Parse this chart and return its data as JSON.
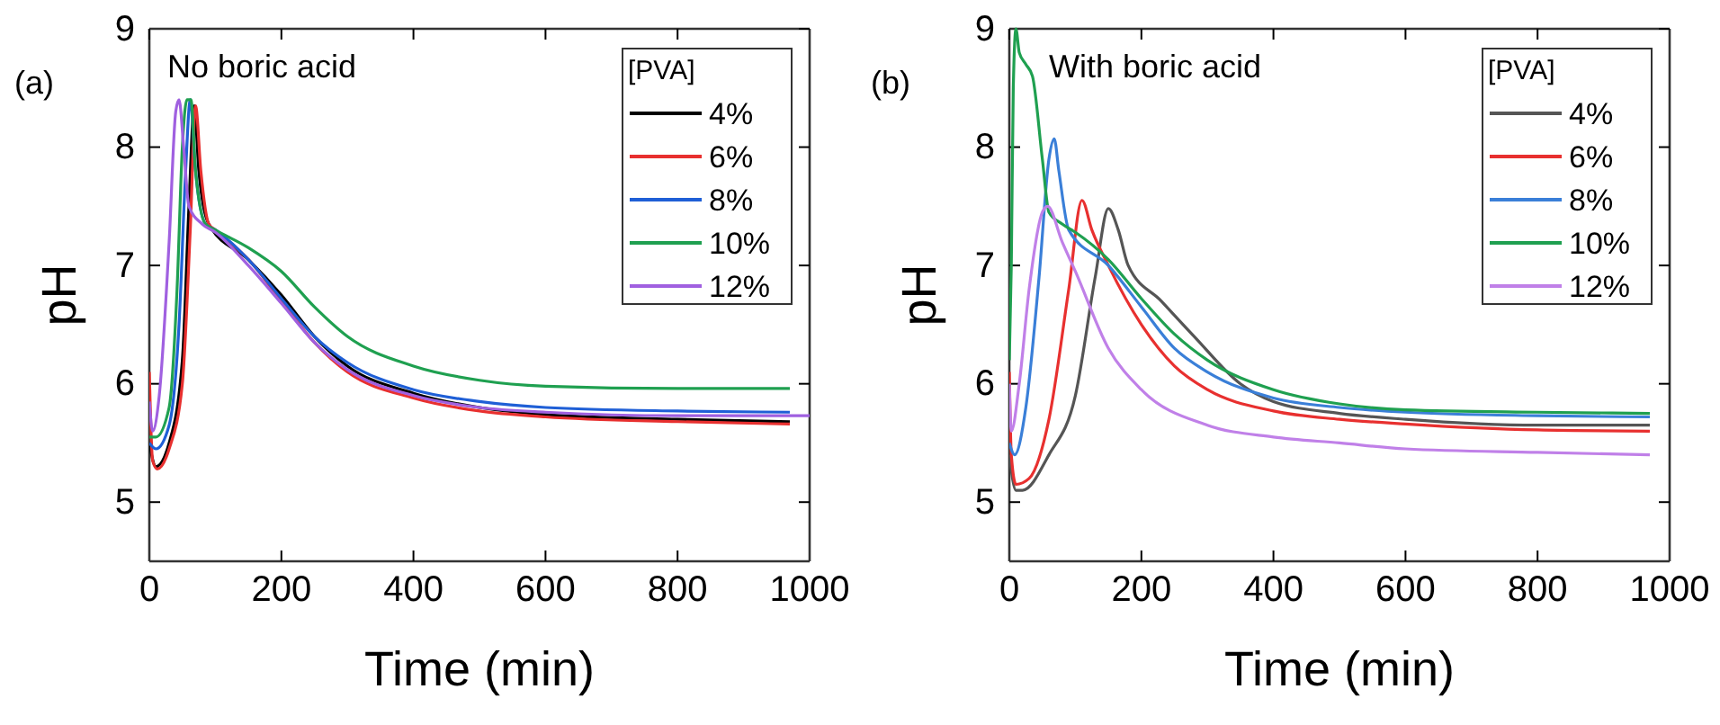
{
  "chart_data": [
    {
      "type": "line",
      "ylabel": "pH",
      "xlabel": "Time (min)",
      "legend_title": "[PVA]",
      "legend": "top right",
      "annotations": [
        "(a)",
        "No boric acid"
      ],
      "xlim": [
        0,
        1000
      ],
      "ylim": [
        4.5,
        9
      ],
      "xticks": [
        0,
        200,
        400,
        600,
        800,
        1000
      ],
      "yticks": [
        5,
        6,
        7,
        8,
        9
      ],
      "series": [
        {
          "name": "4%",
          "color": "#000000",
          "x": [
            0,
            10,
            30,
            50,
            60,
            68,
            75,
            90,
            150,
            200,
            250,
            300,
            400,
            500,
            600,
            800,
            970
          ],
          "values": [
            5.5,
            5.3,
            5.5,
            6.2,
            7.5,
            8.35,
            7.8,
            7.35,
            7.05,
            6.75,
            6.4,
            6.15,
            5.92,
            5.8,
            5.74,
            5.7,
            5.68
          ]
        },
        {
          "name": "6%",
          "color": "#e8302f",
          "x": [
            0,
            5,
            12,
            30,
            50,
            62,
            70,
            78,
            90,
            100,
            150,
            200,
            250,
            300,
            400,
            500,
            600,
            800,
            970
          ],
          "values": [
            6.1,
            5.35,
            5.28,
            5.45,
            6.0,
            7.3,
            8.35,
            7.8,
            7.35,
            7.3,
            7.05,
            6.7,
            6.35,
            6.1,
            5.88,
            5.77,
            5.72,
            5.68,
            5.66
          ]
        },
        {
          "name": "8%",
          "color": "#1f5fd6",
          "x": [
            0,
            10,
            30,
            45,
            55,
            62,
            70,
            85,
            100,
            150,
            200,
            250,
            300,
            400,
            500,
            600,
            800,
            970
          ],
          "values": [
            5.5,
            5.45,
            5.65,
            6.5,
            7.8,
            8.4,
            7.8,
            7.35,
            7.3,
            7.05,
            6.72,
            6.4,
            6.18,
            5.95,
            5.85,
            5.8,
            5.77,
            5.76
          ]
        },
        {
          "name": "10%",
          "color": "#1fa050",
          "x": [
            0,
            10,
            30,
            42,
            50,
            57,
            63,
            70,
            85,
            100,
            150,
            200,
            250,
            300,
            400,
            500,
            600,
            800,
            970
          ],
          "values": [
            5.55,
            5.55,
            5.8,
            6.8,
            8.0,
            8.4,
            8.4,
            7.8,
            7.35,
            7.3,
            7.15,
            6.95,
            6.65,
            6.4,
            6.15,
            6.03,
            5.98,
            5.96,
            5.96
          ]
        },
        {
          "name": "12%",
          "color": "#a060e0",
          "x": [
            0,
            5,
            15,
            30,
            40,
            45,
            52,
            60,
            80,
            100,
            150,
            200,
            250,
            300,
            400,
            500,
            600,
            800,
            1000
          ],
          "values": [
            5.85,
            5.6,
            5.9,
            7.2,
            8.3,
            8.4,
            8.0,
            7.5,
            7.35,
            7.28,
            7.0,
            6.68,
            6.35,
            6.12,
            5.9,
            5.8,
            5.76,
            5.73,
            5.73
          ]
        }
      ]
    },
    {
      "type": "line",
      "ylabel": "pH",
      "xlabel": "Time (min)",
      "legend_title": "[PVA]",
      "legend": "top right",
      "annotations": [
        "(b)",
        "With boric acid"
      ],
      "xlim": [
        0,
        1000
      ],
      "ylim": [
        4.5,
        9
      ],
      "xticks": [
        0,
        200,
        400,
        600,
        800,
        1000
      ],
      "yticks": [
        5,
        6,
        7,
        8,
        9
      ],
      "series": [
        {
          "name": "4%",
          "color": "#555555",
          "x": [
            0,
            10,
            20,
            60,
            100,
            130,
            150,
            165,
            180,
            230,
            280,
            350,
            400,
            500,
            600,
            800,
            970
          ],
          "values": [
            5.4,
            5.1,
            5.1,
            5.4,
            5.9,
            6.9,
            7.48,
            7.3,
            7.0,
            6.7,
            6.4,
            6.0,
            5.85,
            5.75,
            5.7,
            5.65,
            5.65
          ]
        },
        {
          "name": "6%",
          "color": "#e8302f",
          "x": [
            0,
            3,
            10,
            30,
            60,
            90,
            110,
            125,
            150,
            200,
            250,
            300,
            400,
            500,
            600,
            800,
            970
          ],
          "values": [
            6.1,
            5.4,
            5.15,
            5.2,
            5.7,
            6.8,
            7.55,
            7.3,
            7.0,
            6.5,
            6.15,
            5.95,
            5.77,
            5.7,
            5.66,
            5.61,
            5.6
          ]
        },
        {
          "name": "8%",
          "color": "#3a7fd8",
          "x": [
            0,
            8,
            25,
            45,
            60,
            68,
            75,
            90,
            150,
            200,
            250,
            300,
            400,
            500,
            600,
            800,
            970
          ],
          "values": [
            5.5,
            5.4,
            5.8,
            6.9,
            7.9,
            8.07,
            7.8,
            7.3,
            7.0,
            6.65,
            6.3,
            6.1,
            5.88,
            5.8,
            5.76,
            5.73,
            5.72
          ]
        },
        {
          "name": "10%",
          "color": "#1fa050",
          "x": [
            0,
            3,
            6,
            10,
            15,
            25,
            35,
            50,
            60,
            80,
            100,
            150,
            200,
            250,
            300,
            400,
            500,
            600,
            800,
            970
          ],
          "values": [
            6.2,
            7.0,
            8.5,
            9.0,
            8.8,
            8.7,
            8.6,
            7.9,
            7.45,
            7.35,
            7.28,
            7.05,
            6.72,
            6.42,
            6.2,
            5.95,
            5.83,
            5.78,
            5.76,
            5.75
          ]
        },
        {
          "name": "12%",
          "color": "#c080e8",
          "x": [
            0,
            3,
            15,
            30,
            50,
            58,
            80,
            100,
            150,
            200,
            300,
            400,
            500,
            600,
            800,
            970
          ],
          "values": [
            6.0,
            5.6,
            6.0,
            6.8,
            7.45,
            7.5,
            7.2,
            6.95,
            6.3,
            5.95,
            5.65,
            5.55,
            5.5,
            5.45,
            5.42,
            5.4
          ]
        }
      ]
    }
  ]
}
